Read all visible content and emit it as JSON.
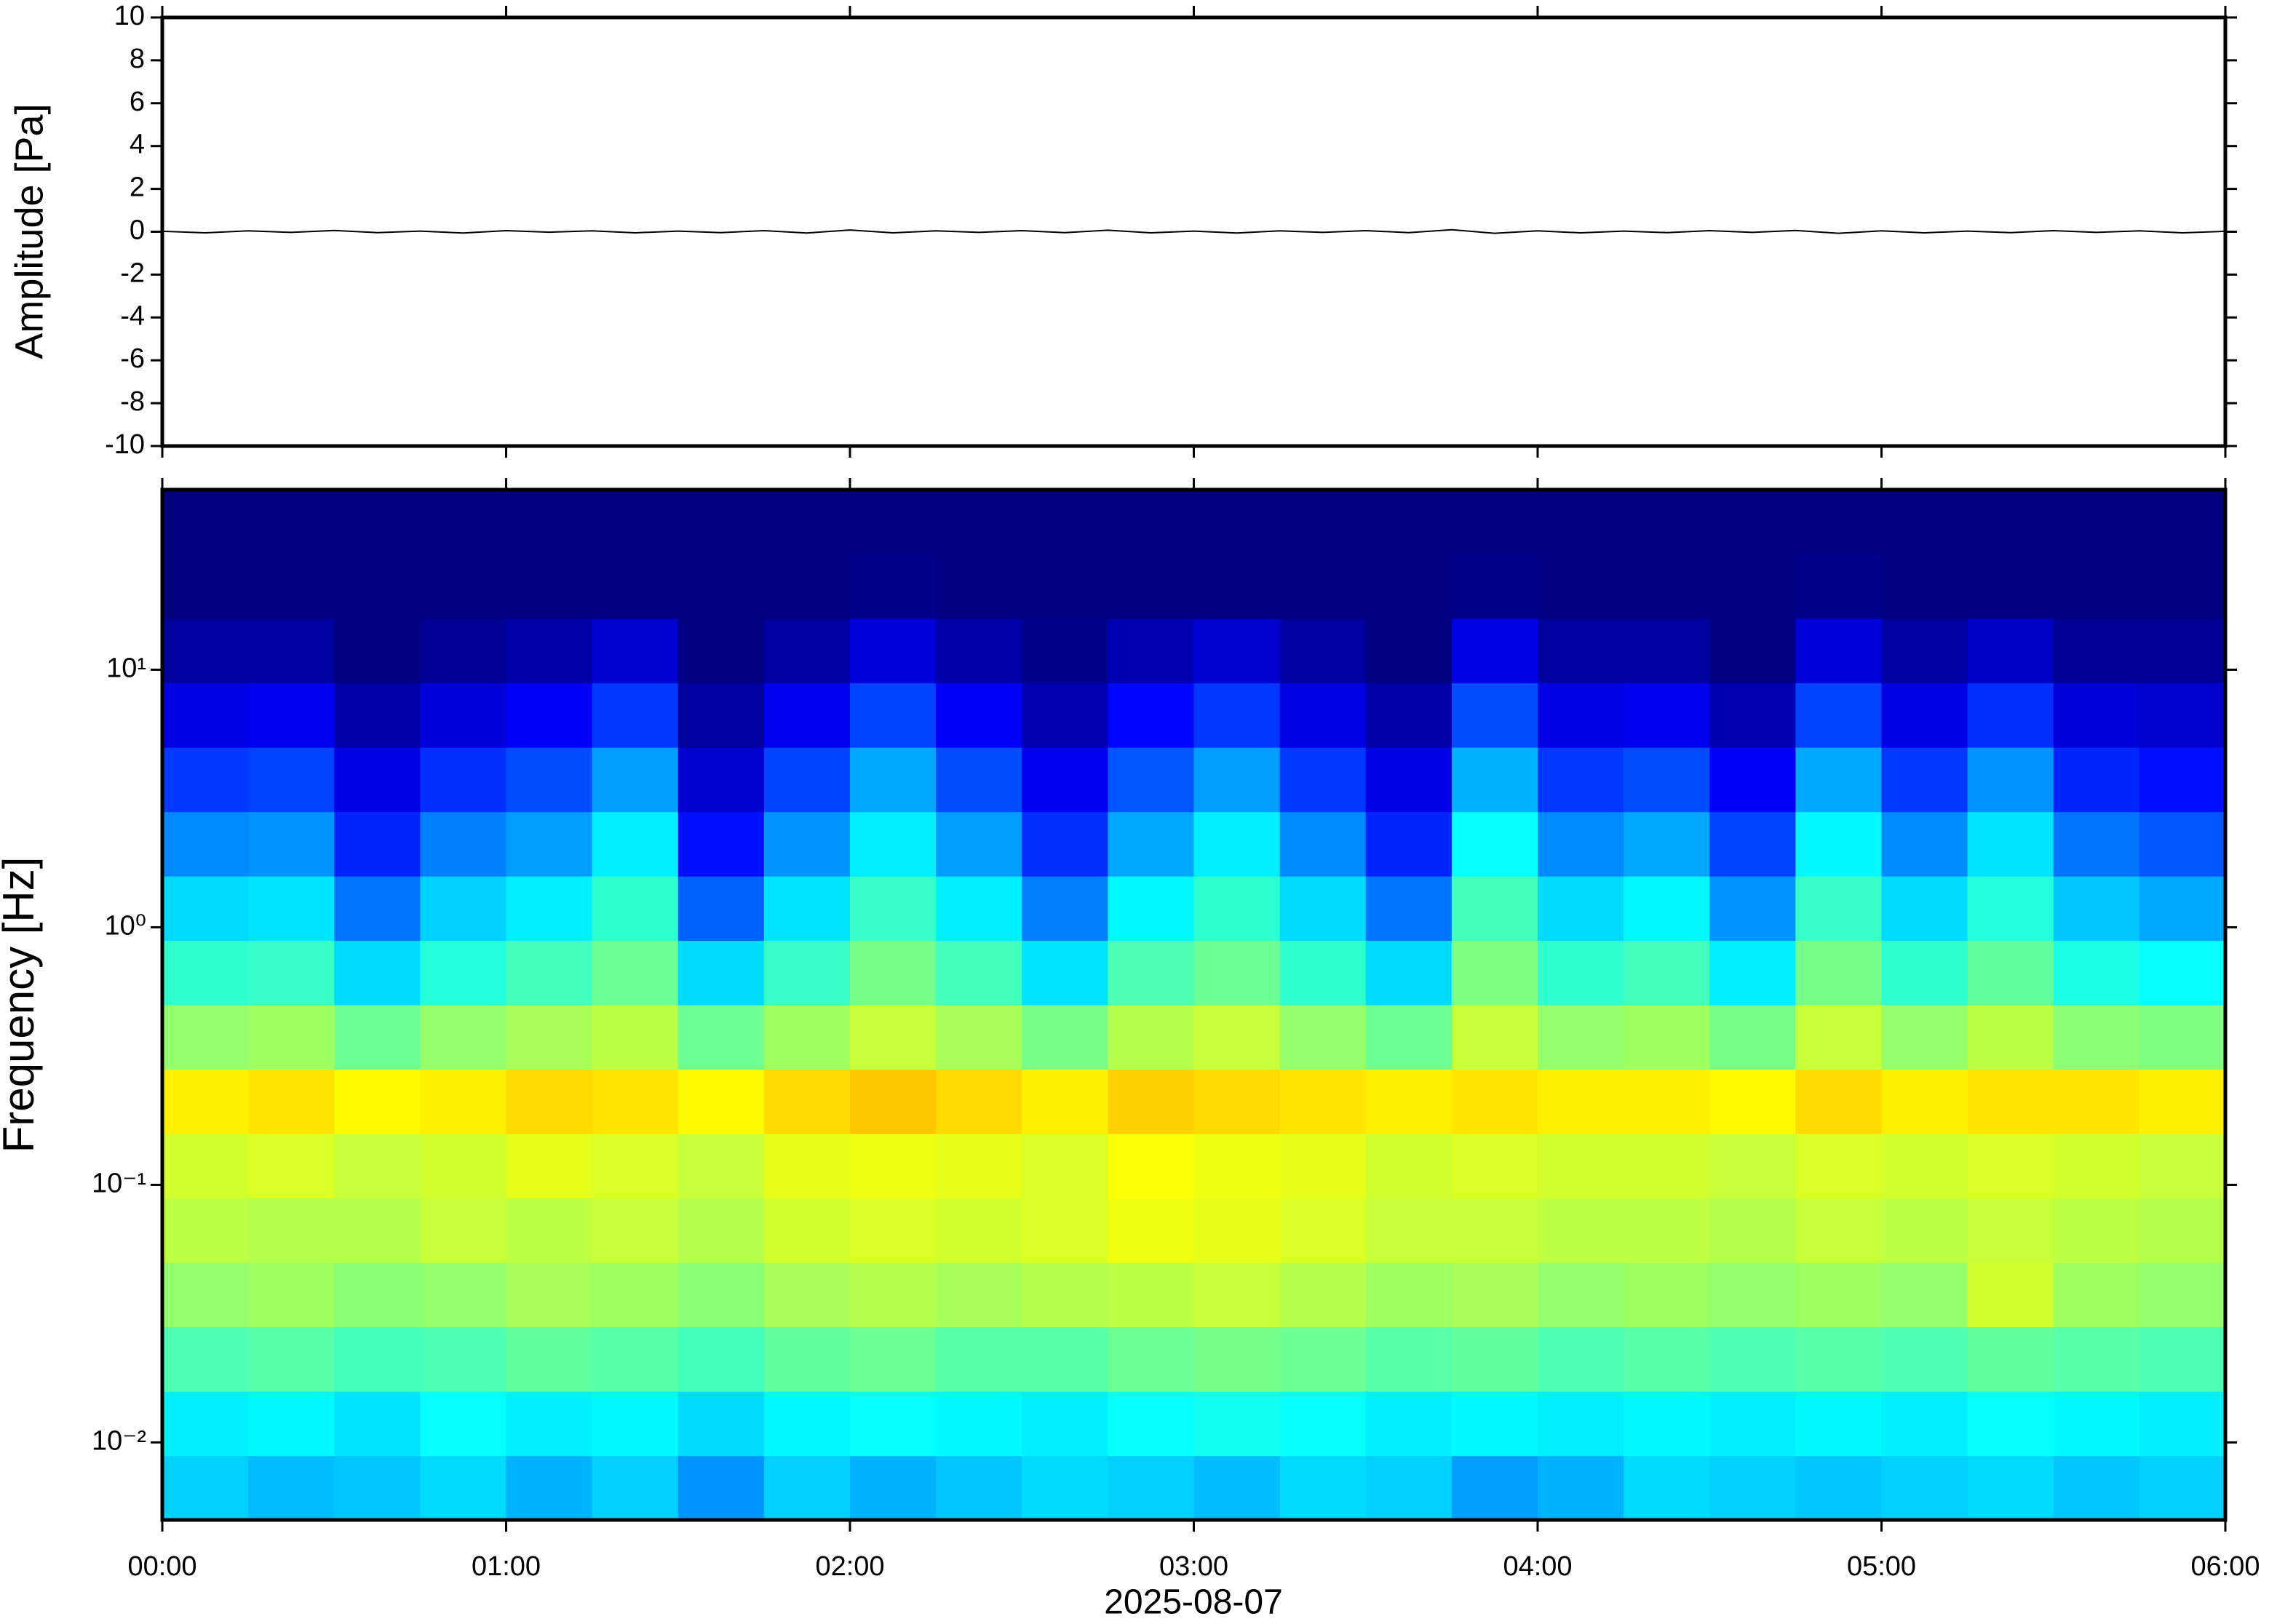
{
  "chart_data": [
    {
      "type": "line",
      "ylabel": "Amplitude [Pa]",
      "color": "#000000",
      "xlim": [
        0,
        6
      ],
      "x": [
        0,
        0.125,
        0.25,
        0.375,
        0.5,
        0.625,
        0.75,
        0.875,
        1,
        1.125,
        1.25,
        1.375,
        1.5,
        1.625,
        1.75,
        1.875,
        2,
        2.125,
        2.25,
        2.375,
        2.5,
        2.625,
        2.75,
        2.875,
        3,
        3.125,
        3.25,
        3.375,
        3.5,
        3.625,
        3.75,
        3.875,
        4,
        4.125,
        4.25,
        4.375,
        4.5,
        4.625,
        4.75,
        4.875,
        5,
        5.125,
        5.25,
        5.375,
        5.5,
        5.625,
        5.75,
        5.875,
        6
      ],
      "values": [
        0.02,
        -0.05,
        0.04,
        -0.03,
        0.06,
        -0.04,
        0.03,
        -0.06,
        0.05,
        -0.02,
        0.04,
        -0.05,
        0.03,
        -0.04,
        0.05,
        -0.06,
        0.08,
        -0.05,
        0.04,
        -0.03,
        0.05,
        -0.04,
        0.07,
        -0.05,
        0.03,
        -0.06,
        0.04,
        -0.03,
        0.05,
        -0.04,
        0.09,
        -0.07,
        0.04,
        -0.05,
        0.03,
        -0.04,
        0.05,
        -0.03,
        0.06,
        -0.07,
        0.04,
        -0.05,
        0.03,
        -0.04,
        0.05,
        -0.03,
        0.04,
        -0.05,
        0.02
      ],
      "ylim": [
        -10,
        10
      ],
      "yticks": [
        -10,
        -8,
        -6,
        -4,
        -2,
        0,
        2,
        4,
        6,
        8,
        10
      ]
    },
    {
      "type": "spectrogram",
      "ylabel": "Frequency [Hz]",
      "xlabel": "2025-08-07",
      "colormap": "jet",
      "log_y": true,
      "xlim": [
        0,
        6
      ],
      "ylim": [
        0.005,
        50
      ],
      "xticks": [
        {
          "value": 0,
          "label": "00:00"
        },
        {
          "value": 1,
          "label": "01:00"
        },
        {
          "value": 2,
          "label": "02:00"
        },
        {
          "value": 3,
          "label": "03:00"
        },
        {
          "value": 4,
          "label": "04:00"
        },
        {
          "value": 5,
          "label": "05:00"
        },
        {
          "value": 6,
          "label": "06:00"
        }
      ],
      "yticks": [
        {
          "value": 0.01,
          "label": "10⁻²"
        },
        {
          "value": 0.1,
          "label": "10⁻¹"
        },
        {
          "value": 1,
          "label": "10⁰"
        },
        {
          "value": 10,
          "label": "10¹"
        }
      ],
      "xedges": [
        0,
        0.25,
        0.5,
        0.75,
        1,
        1.25,
        1.5,
        1.75,
        2,
        2.25,
        2.5,
        2.75,
        3,
        3.25,
        3.5,
        3.75,
        4,
        4.25,
        4.5,
        4.75,
        5,
        5.25,
        5.5,
        5.75,
        6
      ],
      "yedges": [
        0.005,
        0.00889,
        0.0158,
        0.0281,
        0.05,
        0.0889,
        0.158,
        0.281,
        0.5,
        0.889,
        1.58,
        2.81,
        5,
        8.89,
        15.8,
        28.1,
        50
      ],
      "z": [
        [
          0.33,
          0.36,
          0.45,
          0.52,
          0.56,
          0.58,
          0.64,
          0.52,
          0.42,
          0.34,
          0.26,
          0.18,
          0.1,
          0.03,
          0.0,
          0.0
        ],
        [
          0.31,
          0.37,
          0.46,
          0.53,
          0.55,
          0.59,
          0.65,
          0.53,
          0.43,
          0.35,
          0.27,
          0.19,
          0.11,
          0.03,
          0.0,
          0.0
        ],
        [
          0.32,
          0.35,
          0.44,
          0.51,
          0.55,
          0.57,
          0.63,
          0.48,
          0.34,
          0.24,
          0.16,
          0.1,
          0.04,
          0.0,
          0.0,
          0.0
        ],
        [
          0.34,
          0.38,
          0.45,
          0.52,
          0.57,
          0.58,
          0.64,
          0.52,
          0.41,
          0.33,
          0.25,
          0.17,
          0.09,
          0.02,
          0.0,
          0.0
        ],
        [
          0.3,
          0.36,
          0.47,
          0.54,
          0.56,
          0.6,
          0.66,
          0.54,
          0.44,
          0.36,
          0.28,
          0.2,
          0.12,
          0.04,
          0.0,
          0.0
        ],
        [
          0.33,
          0.37,
          0.46,
          0.53,
          0.57,
          0.59,
          0.65,
          0.56,
          0.48,
          0.42,
          0.36,
          0.28,
          0.18,
          0.08,
          0.0,
          0.0
        ],
        [
          0.27,
          0.34,
          0.44,
          0.51,
          0.55,
          0.57,
          0.63,
          0.48,
          0.34,
          0.22,
          0.14,
          0.08,
          0.03,
          0.0,
          0.0,
          0.0
        ],
        [
          0.33,
          0.37,
          0.47,
          0.54,
          0.58,
          0.6,
          0.66,
          0.53,
          0.43,
          0.35,
          0.27,
          0.19,
          0.11,
          0.03,
          0.0,
          0.0
        ],
        [
          0.3,
          0.38,
          0.48,
          0.55,
          0.59,
          0.61,
          0.68,
          0.57,
          0.49,
          0.43,
          0.36,
          0.29,
          0.19,
          0.09,
          0.01,
          0.0
        ],
        [
          0.32,
          0.37,
          0.46,
          0.54,
          0.58,
          0.6,
          0.66,
          0.54,
          0.44,
          0.36,
          0.28,
          0.2,
          0.12,
          0.04,
          0.0,
          0.0
        ],
        [
          0.34,
          0.36,
          0.46,
          0.55,
          0.59,
          0.59,
          0.64,
          0.49,
          0.35,
          0.25,
          0.17,
          0.11,
          0.05,
          0.01,
          0.0,
          0.0
        ],
        [
          0.33,
          0.38,
          0.48,
          0.56,
          0.61,
          0.62,
          0.67,
          0.55,
          0.45,
          0.37,
          0.29,
          0.21,
          0.13,
          0.05,
          0.0,
          0.0
        ],
        [
          0.31,
          0.39,
          0.49,
          0.57,
          0.6,
          0.61,
          0.66,
          0.57,
          0.48,
          0.42,
          0.36,
          0.28,
          0.18,
          0.08,
          0.0,
          0.0
        ],
        [
          0.34,
          0.38,
          0.48,
          0.55,
          0.59,
          0.6,
          0.65,
          0.52,
          0.42,
          0.34,
          0.26,
          0.18,
          0.1,
          0.03,
          0.0,
          0.0
        ],
        [
          0.33,
          0.36,
          0.46,
          0.53,
          0.57,
          0.58,
          0.64,
          0.48,
          0.34,
          0.24,
          0.16,
          0.1,
          0.04,
          0.0,
          0.0,
          0.0
        ],
        [
          0.28,
          0.37,
          0.47,
          0.54,
          0.57,
          0.59,
          0.65,
          0.57,
          0.5,
          0.44,
          0.38,
          0.3,
          0.2,
          0.1,
          0.01,
          0.0
        ],
        [
          0.3,
          0.36,
          0.45,
          0.52,
          0.56,
          0.58,
          0.64,
          0.52,
          0.42,
          0.34,
          0.26,
          0.18,
          0.1,
          0.03,
          0.0,
          0.0
        ],
        [
          0.34,
          0.37,
          0.46,
          0.53,
          0.56,
          0.58,
          0.64,
          0.53,
          0.44,
          0.37,
          0.29,
          0.2,
          0.11,
          0.03,
          0.0,
          0.0
        ],
        [
          0.33,
          0.36,
          0.45,
          0.52,
          0.55,
          0.57,
          0.63,
          0.49,
          0.36,
          0.27,
          0.19,
          0.12,
          0.05,
          0.0,
          0.0,
          0.0
        ],
        [
          0.32,
          0.37,
          0.46,
          0.53,
          0.57,
          0.59,
          0.66,
          0.57,
          0.49,
          0.43,
          0.37,
          0.29,
          0.19,
          0.09,
          0.01,
          0.0
        ],
        [
          0.33,
          0.36,
          0.45,
          0.52,
          0.56,
          0.58,
          0.64,
          0.52,
          0.42,
          0.34,
          0.26,
          0.18,
          0.1,
          0.03,
          0.0,
          0.0
        ],
        [
          0.34,
          0.38,
          0.47,
          0.58,
          0.57,
          0.59,
          0.65,
          0.56,
          0.47,
          0.41,
          0.35,
          0.27,
          0.17,
          0.07,
          0.0,
          0.0
        ],
        [
          0.32,
          0.37,
          0.46,
          0.53,
          0.56,
          0.58,
          0.65,
          0.51,
          0.4,
          0.32,
          0.24,
          0.16,
          0.09,
          0.02,
          0.0,
          0.0
        ],
        [
          0.33,
          0.36,
          0.45,
          0.52,
          0.55,
          0.57,
          0.64,
          0.5,
          0.38,
          0.29,
          0.21,
          0.14,
          0.08,
          0.02,
          0.0,
          0.0
        ]
      ]
    }
  ]
}
